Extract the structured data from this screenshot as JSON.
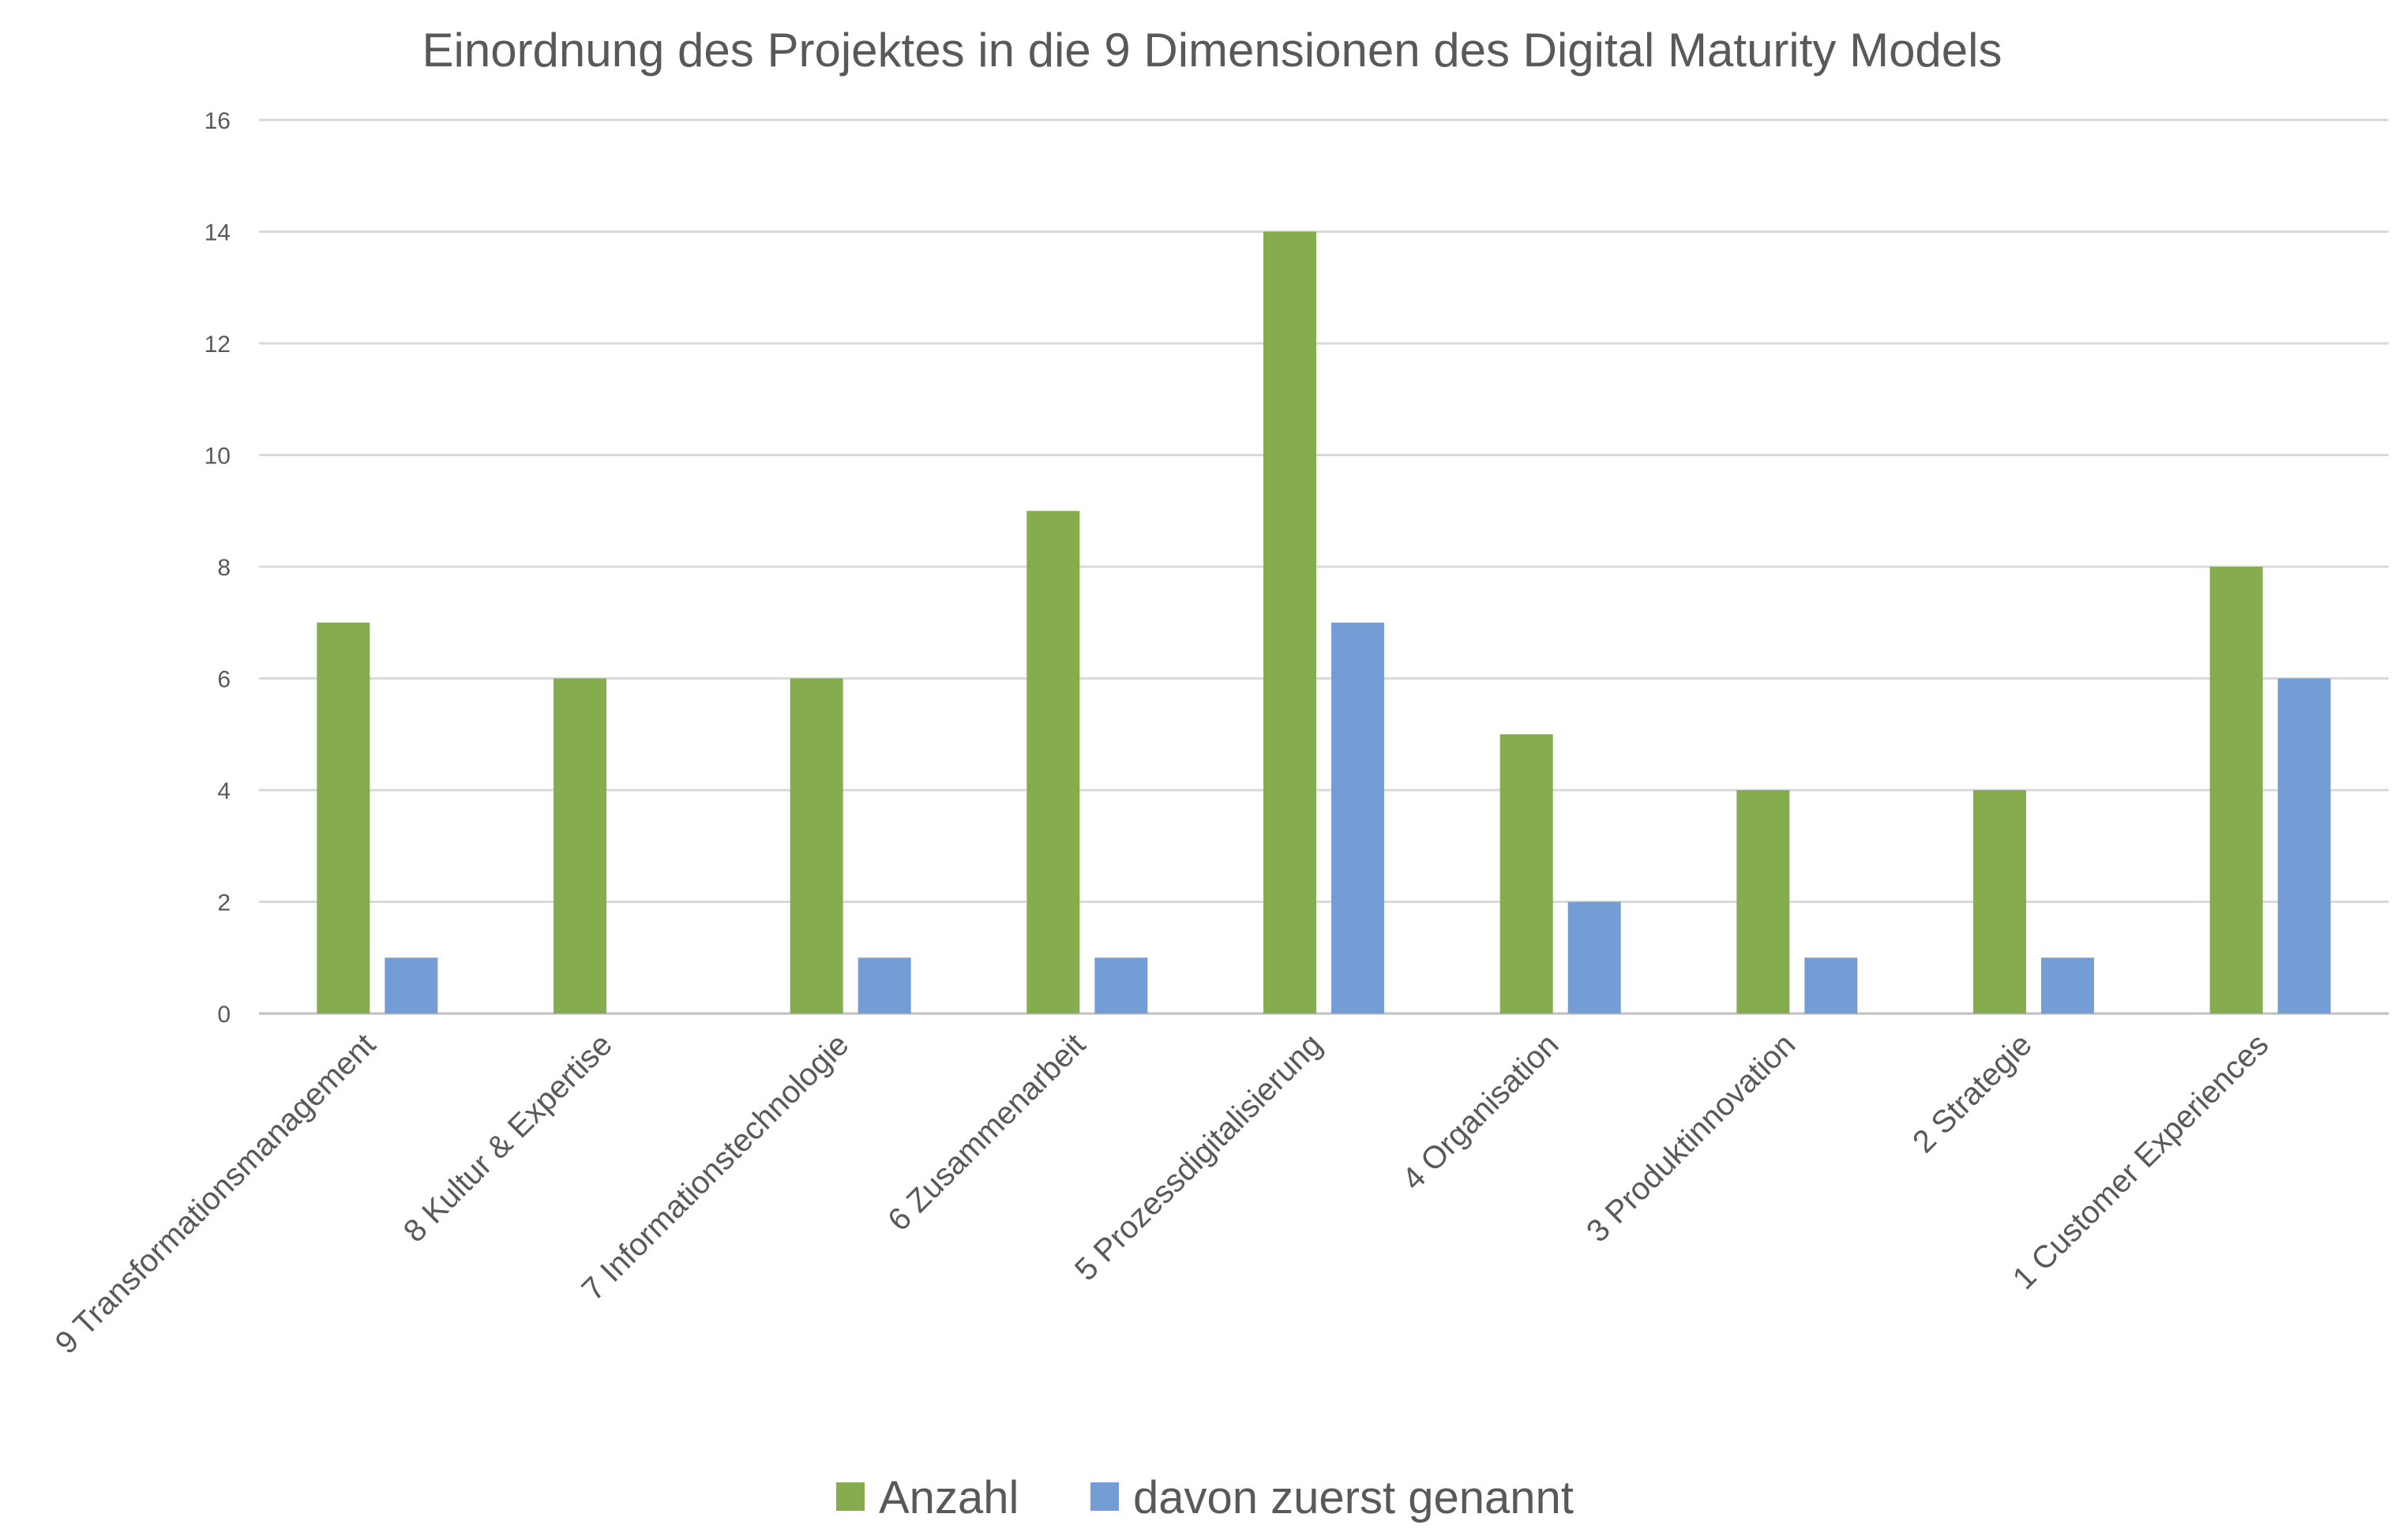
{
  "chart_data": {
    "type": "bar",
    "title": "Einordnung des Projektes in die 9 Dimensionen des Digital Maturity Models",
    "xlabel": "",
    "ylabel": "",
    "ylim": [
      0,
      16
    ],
    "yticks": [
      0,
      2,
      4,
      6,
      8,
      10,
      12,
      14,
      16
    ],
    "grid": true,
    "legend_position": "bottom",
    "categories": [
      "9 Transformationsmanagement",
      "8 Kultur & Expertise",
      "7 Informationstechnologie",
      "6 Zusammenarbeit",
      "5 Prozessdigitalisierung",
      "4 Organisation",
      "3 Produktinnovation",
      "2 Strategie",
      "1 Customer Experiences"
    ],
    "series": [
      {
        "name": "Anzahl",
        "color": "#86ac50",
        "values": [
          7,
          6,
          6,
          9,
          14,
          5,
          4,
          4,
          8
        ]
      },
      {
        "name": "davon zuerst genannt",
        "color": "#739dd4",
        "values": [
          1,
          0,
          1,
          1,
          7,
          2,
          1,
          1,
          6
        ]
      }
    ]
  }
}
